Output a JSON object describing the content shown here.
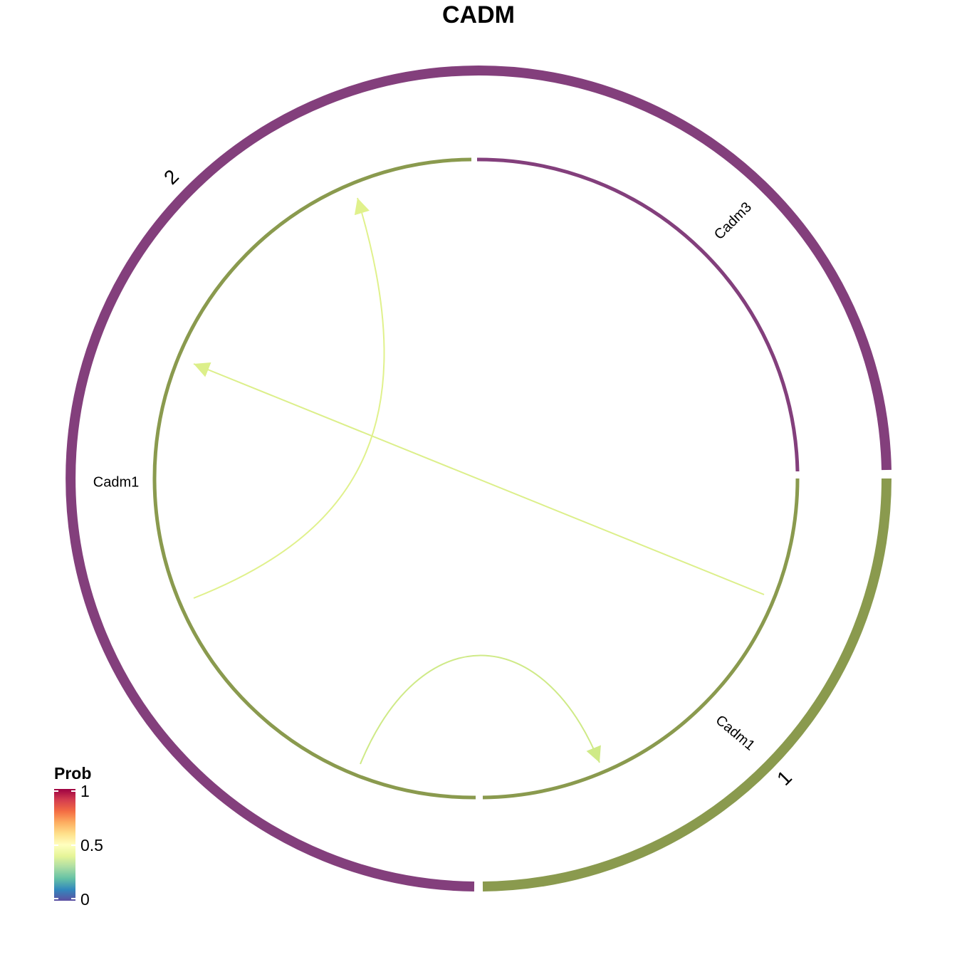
{
  "title": "CADM",
  "groups": [
    {
      "label": "1",
      "color": "#8a9a4e"
    },
    {
      "label": "2",
      "color": "#833f7c"
    }
  ],
  "sectors": [
    {
      "group": "1",
      "label": "Cadm1",
      "color": "#8a9a4e"
    },
    {
      "group": "2",
      "label": "Cadm1",
      "color": "#8a9a4e"
    },
    {
      "group": "2",
      "label": "Cadm3",
      "color": "#833f7c"
    }
  ],
  "links": [
    {
      "from": "1:Cadm1",
      "to": "2:Cadm1",
      "color": "#dcef8a"
    },
    {
      "from": "1:Cadm1",
      "to": "1:Cadm1",
      "color": "#cfea87"
    },
    {
      "from": "2:Cadm1",
      "to": "2:Cadm1",
      "color": "#e0f18c"
    }
  ],
  "legend": {
    "title": "Prob",
    "ticks": [
      "1",
      "0.5",
      "0"
    ],
    "colors": [
      "#9e0142",
      "#d53e4f",
      "#f46d43",
      "#fdae61",
      "#fee08b",
      "#ffffbf",
      "#e6f598",
      "#abdda4",
      "#66c2a5",
      "#3288bd",
      "#5e4fa2"
    ]
  }
}
